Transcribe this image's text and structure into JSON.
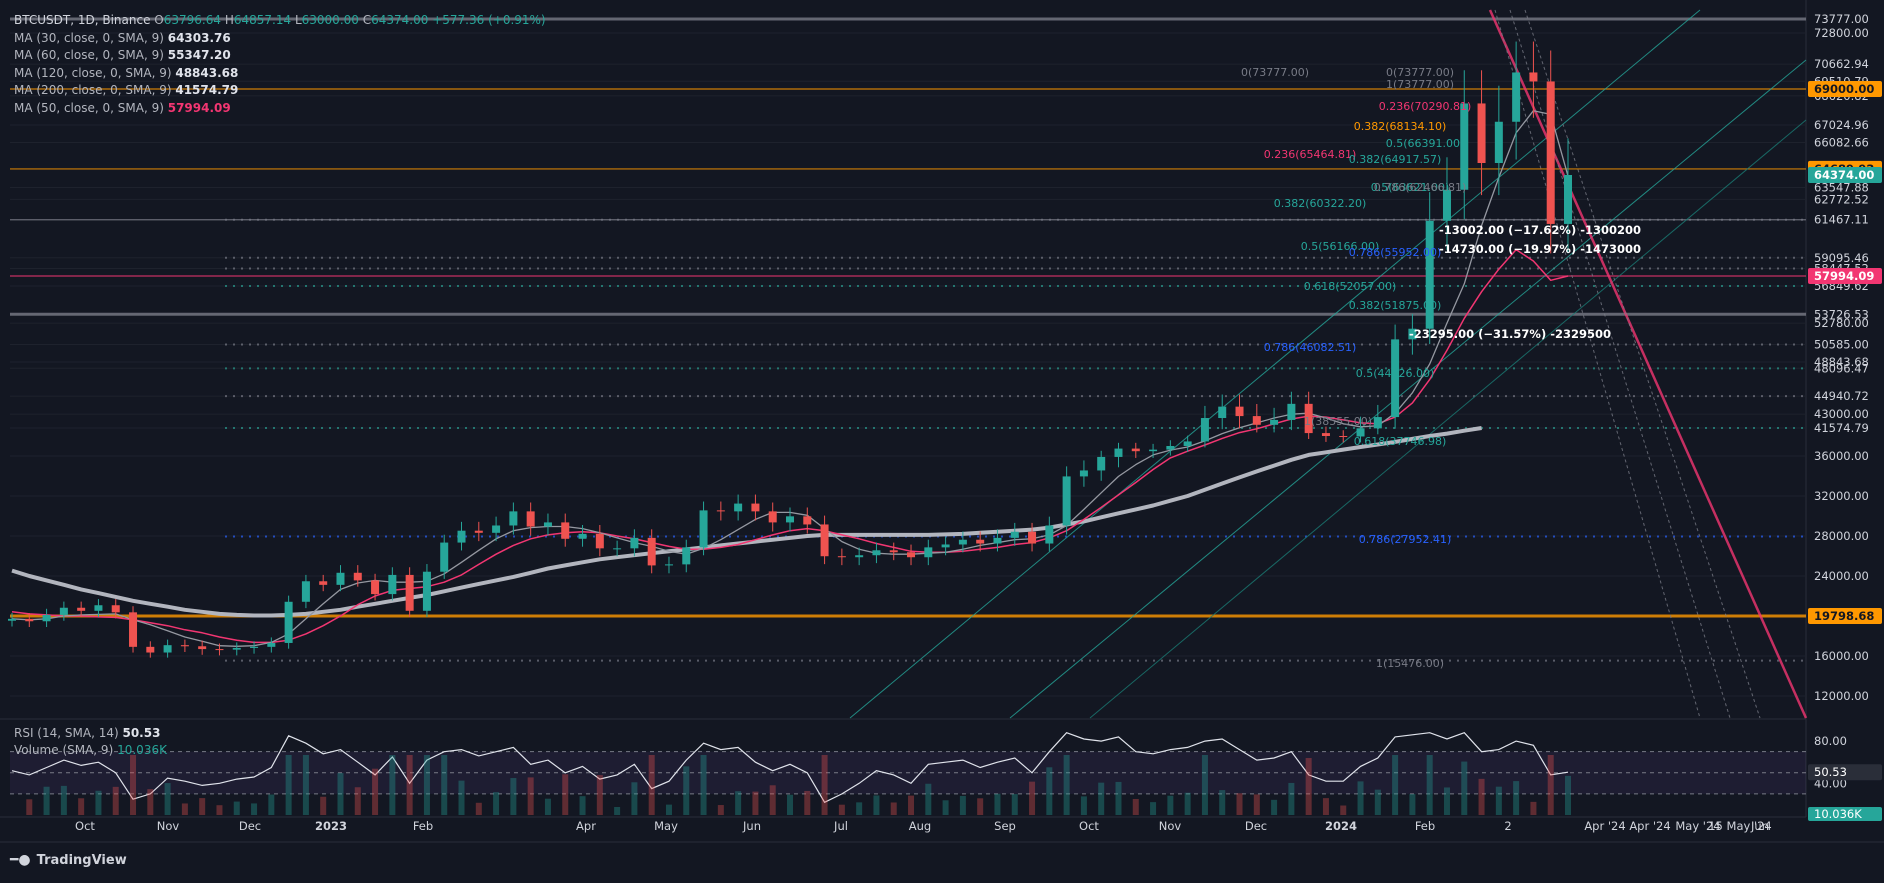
{
  "header": {
    "symbol": "BTCUSDT, 1D, Binance",
    "open_label": "O",
    "open": "63796.64",
    "high_label": "H",
    "high": "64857.14",
    "low_label": "L",
    "low": "63000.00",
    "close_label": "C",
    "close": "64374.00",
    "change": "+577.36 (+0.91%)"
  },
  "ma_legend": [
    {
      "label": "MA (30, close, 0, SMA, 9)",
      "value": "64303.76",
      "color": "#e0e3eb"
    },
    {
      "label": "MA (60, close, 0, SMA, 9)",
      "value": "55347.20",
      "color": "#e0e3eb"
    },
    {
      "label": "MA (120, close, 0, SMA, 9)",
      "value": "48843.68",
      "color": "#e0e3eb"
    },
    {
      "label": "MA (200, close, 0, SMA, 9)",
      "value": "41574.79",
      "color": "#e0e3eb"
    },
    {
      "label": "MA (50, close, 0, SMA, 9)",
      "value": "57994.09",
      "color": "#f23672"
    }
  ],
  "rsi_legend": {
    "label": "RSI (14, SMA, 14)",
    "value": "50.53"
  },
  "volume_legend": {
    "label": "Volume (SMA, 9)",
    "value": "10.036K"
  },
  "brand": {
    "name": "TradingView"
  },
  "colors": {
    "background": "#131722",
    "up": "#26a69a",
    "down": "#ef5350",
    "ma_pink": "#f23672",
    "orange": "#ff9800",
    "ma_grey": "#9598a1",
    "ma_white": "#d1d4dc"
  },
  "chart_data": {
    "type": "candlestick",
    "symbol": "BTCUSDT",
    "timeframe": "1D",
    "exchange": "Binance",
    "price_axis": {
      "scale": "log",
      "ticks": [
        "73777.00",
        "72800.00",
        "70662.94",
        "69510.79",
        "68620.82",
        "67024.96",
        "66082.66",
        "63547.88",
        "62772.52",
        "61467.11",
        "59095.46",
        "58447.52",
        "56849.62",
        "53726.53",
        "52780.00",
        "50585.00",
        "48843.68",
        "48096.47",
        "44940.72",
        "43000.00",
        "41574.79",
        "36000.00",
        "32000.00",
        "28000.00",
        "24000.00",
        "16000.00",
        "12000.00"
      ],
      "badges": [
        {
          "value": "69000.00",
          "color": "#ff9800"
        },
        {
          "value": "64689.92",
          "color": "#ff9800"
        },
        {
          "value": "64374.00",
          "color": "#26a69a"
        },
        {
          "value": "57994.09",
          "color": "#f23672"
        },
        {
          "value": "19798.68",
          "color": "#ff9800"
        }
      ]
    },
    "time_axis": {
      "ticks": [
        "Oct",
        "Nov",
        "Dec",
        "2023",
        "Feb",
        "Apr",
        "May",
        "Jun",
        "Jul",
        "Aug",
        "Sep",
        "Oct",
        "Nov",
        "Dec",
        "2024",
        "Feb",
        "2",
        "Apr '24",
        "Apr '24",
        "May '24",
        "15 May '24",
        "Jun"
      ]
    },
    "closes": [
      19500,
      19250,
      19900,
      20600,
      20300,
      20850,
      20150,
      16800,
      16300,
      16950,
      16850,
      16600,
      16550,
      16700,
      16800,
      17150,
      21200,
      23400,
      23000,
      24300,
      23500,
      22000,
      24100,
      20300,
      24400,
      27300,
      28500,
      28300,
      29000,
      30400,
      28900,
      29300,
      27700,
      28200,
      26700,
      26700,
      27800,
      25000,
      25100,
      26800,
      30500,
      30400,
      31200,
      30400,
      29300,
      29900,
      29100,
      25900,
      25800,
      26000,
      26500,
      26300,
      25800,
      26800,
      27100,
      27600,
      27200,
      27800,
      28400,
      27200,
      29000,
      33900,
      34500,
      35900,
      37400,
      36900,
      37200,
      37900,
      38800,
      42600,
      43800,
      42800,
      41900,
      42400,
      44100,
      40500,
      39900,
      39800,
      41500,
      42700,
      51100,
      52200,
      61400,
      63400,
      68200,
      65000,
      67200,
      70100,
      69500,
      61200,
      64374
    ],
    "ma30": [
      19500,
      19400,
      19500,
      19800,
      19900,
      19950,
      20000,
      19400,
      18900,
      18300,
      17700,
      17300,
      16900,
      16850,
      16900,
      17200,
      18000,
      19500,
      21000,
      22500,
      23200,
      23500,
      23300,
      23300,
      23400,
      24200,
      25300,
      26500,
      27700,
      28500,
      28800,
      28900,
      28900,
      28700,
      28300,
      27800,
      27300,
      26900,
      26400,
      26100,
      26700,
      27600,
      28600,
      29600,
      30300,
      30300,
      30000,
      28700,
      27400,
      26600,
      26200,
      26100,
      26100,
      26200,
      26300,
      26600,
      27000,
      27300,
      27600,
      27700,
      28100,
      29000,
      30600,
      32300,
      33900,
      35100,
      36200,
      37100,
      37700,
      38900,
      40400,
      41600,
      42100,
      42600,
      43000,
      43100,
      42600,
      42000,
      41700,
      41800,
      43100,
      45300,
      48600,
      52800,
      57100,
      61100,
      64200,
      66600,
      67800,
      67600,
      64300
    ],
    "ma50": [
      20200,
      20000,
      19900,
      19800,
      19800,
      19700,
      19650,
      19400,
      19100,
      18800,
      18400,
      18100,
      17700,
      17400,
      17200,
      17200,
      17400,
      18000,
      18800,
      19800,
      20900,
      21800,
      22400,
      22600,
      22800,
      23300,
      24100,
      25100,
      26100,
      27000,
      27700,
      28100,
      28300,
      28400,
      28300,
      28000,
      27700,
      27300,
      26900,
      26600,
      26600,
      26800,
      27100,
      27600,
      28100,
      28500,
      28700,
      28500,
      28100,
      27700,
      27200,
      26800,
      26400,
      26300,
      26300,
      26400,
      26600,
      26800,
      27100,
      27300,
      27800,
      28500,
      29600,
      30800,
      32100,
      33300,
      34600,
      35800,
      36900,
      38100,
      39400,
      40600,
      41400,
      42000,
      42500,
      42800,
      42700,
      42400,
      42100,
      42000,
      42700,
      44200,
      46800,
      50000,
      53300,
      56200,
      58400,
      59600,
      58900,
      57500,
      57994
    ],
    "ma200": [
      24500,
      24000,
      23500,
      23000,
      22500,
      22100,
      21700,
      21300,
      21000,
      20700,
      20400,
      20200,
      20000,
      19900,
      19850,
      19850,
      19900,
      20000,
      20200,
      20400,
      20700,
      21000,
      21300,
      21600,
      21900,
      22300,
      22700,
      23100,
      23500,
      23900,
      24300,
      24700,
      25000,
      25300,
      25600,
      25800,
      26000,
      26200,
      26400,
      26600,
      26800,
      27000,
      27200,
      27400,
      27600,
      27800,
      28000,
      28100,
      28100,
      28100,
      28100,
      28100,
      28100,
      28100,
      28150,
      28200,
      28300,
      28400,
      28500,
      28600,
      28800,
      29100,
      29400,
      29800,
      30200,
      30600,
      31000,
      31500,
      32000,
      32600,
      33200,
      33800,
      34400,
      35000,
      35600,
      36200,
      36700,
      37200,
      37700,
      38200,
      38700,
      39300,
      39900,
      40400,
      41000,
      41574,
      null,
      null,
      null,
      null,
      null
    ],
    "rsi": [
      52,
      48,
      55,
      62,
      57,
      60,
      50,
      25,
      30,
      45,
      42,
      38,
      40,
      44,
      46,
      55,
      85,
      78,
      68,
      72,
      60,
      48,
      65,
      40,
      62,
      70,
      72,
      66,
      70,
      74,
      58,
      62,
      50,
      56,
      44,
      48,
      58,
      35,
      42,
      62,
      78,
      72,
      74,
      60,
      52,
      58,
      50,
      22,
      30,
      40,
      52,
      48,
      40,
      58,
      60,
      62,
      55,
      60,
      64,
      50,
      70,
      88,
      82,
      80,
      84,
      70,
      68,
      72,
      74,
      80,
      82,
      72,
      62,
      64,
      70,
      48,
      42,
      42,
      56,
      64,
      84,
      86,
      88,
      82,
      88,
      70,
      72,
      80,
      76,
      48,
      50.53
    ],
    "rsi_levels": [
      70,
      50,
      30
    ],
    "rsi_axis_ticks": [
      "80.00",
      "40.00"
    ],
    "fibonacci_labels": [
      "0(73777.00)",
      "0(73777.00)",
      "1(73777.00)",
      "0.236(70290.81)",
      "0.382(68134.10)",
      "0.5(66391.00)",
      "0.236(65464.81)",
      "0.382(64917.57)",
      "0.5(63621.00)",
      "0.786(62466.81)",
      "0.382(60322.20)",
      "0.5(56166.00)",
      "0.786(55952.00)",
      "0.618(52057.00)",
      "0.382(51875.00)",
      "0.786(46082.51)",
      "0.5(44726.00)",
      "1(38555.00)",
      "0.618(37746.98)",
      "0.786(27952.41)",
      "1(15476.00)"
    ],
    "measure_labels": [
      "-13002.00 (−17.62%) -1300200",
      "-14730.00 (−19.97%) -1473000",
      "-23295.00 (−31.57%) -2329500"
    ],
    "horizontal_levels": [
      73777,
      69000,
      64689.92,
      61467.11,
      57994.09,
      53726.53,
      19798.68
    ]
  }
}
